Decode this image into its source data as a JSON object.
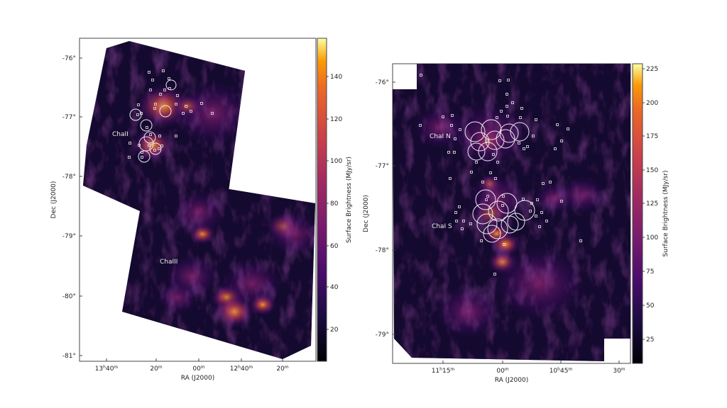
{
  "chart_data": [
    {
      "type": "heatmap",
      "xlabel": "RA (J2000)",
      "ylabel": "Dec (J2000)",
      "colorbar_label": "Surface Brightness (MJy/sr)",
      "colormap": "inferno",
      "colorbar_range": [
        5,
        158
      ],
      "colorbar_ticks": [
        "20",
        "40",
        "60",
        "80",
        "100",
        "120",
        "140"
      ],
      "x_ticks": [
        "13h40m",
        "20m",
        "00m",
        "12h40m",
        "20m"
      ],
      "y_ticks": [
        "-76°",
        "-77°",
        "-78°",
        "-79°",
        "-80°",
        "-81°"
      ],
      "region_labels": [
        "ChaII",
        "ChaIII"
      ]
    },
    {
      "type": "heatmap",
      "xlabel": "RA (J2000)",
      "ylabel": "Dec (J2000)",
      "colorbar_label": "Surface Brightness (MJy/sr)",
      "colormap": "inferno",
      "colorbar_range": [
        8,
        228
      ],
      "colorbar_ticks": [
        "25",
        "50",
        "75",
        "100",
        "125",
        "150",
        "175",
        "200",
        "225"
      ],
      "x_ticks": [
        "11h15m",
        "00m",
        "10h45m",
        "30m"
      ],
      "y_ticks": [
        "-76°",
        "-77°",
        "-78°",
        "-79°"
      ],
      "region_labels": [
        "ChaI N",
        "ChaI S"
      ]
    }
  ]
}
